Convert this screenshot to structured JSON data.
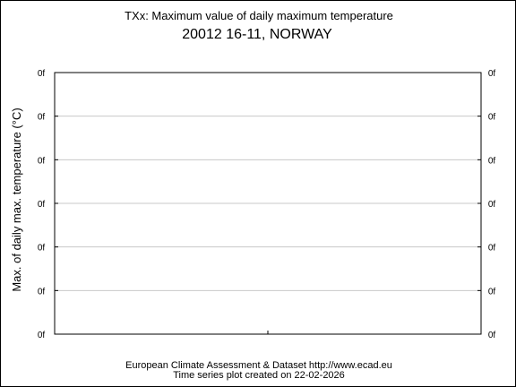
{
  "chart_data": {
    "type": "line",
    "title": "TXx: Maximum value of daily maximum temperature",
    "subtitle": "20012 16-11, NORWAY",
    "ylabel": "Max. of daily max. temperature (°C)",
    "xlabel": "",
    "y_tick_labels": [
      "0f",
      "0f",
      "0f",
      "0f",
      "0f",
      "0f",
      "0f"
    ],
    "x_ticks": 1,
    "grid": true,
    "series": [],
    "footer": {
      "line1": "European Climate Assessment & Dataset  http://www.ecad.eu",
      "line2": "Time series plot created on 22-02-2026"
    }
  }
}
